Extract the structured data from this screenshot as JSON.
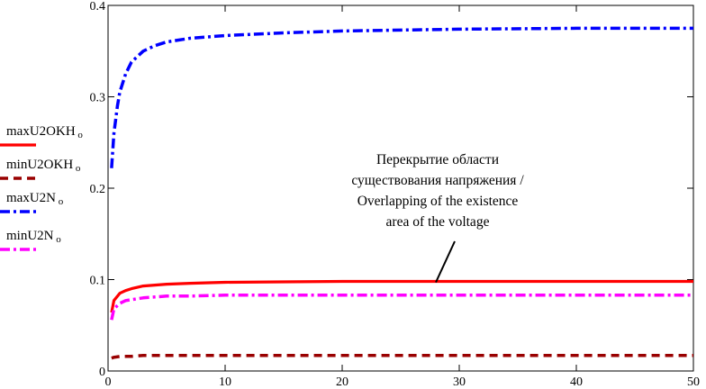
{
  "chart_data": {
    "type": "line",
    "xlim": [
      0,
      50
    ],
    "ylim": [
      0,
      0.4
    ],
    "x_ticks": [
      0,
      10,
      20,
      30,
      40,
      50
    ],
    "y_ticks": [
      0,
      0.1,
      0.2,
      0.3,
      0.4
    ],
    "x_tick_labels": [
      "0",
      "10",
      "20",
      "30",
      "40",
      "50"
    ],
    "y_tick_labels": [
      "0",
      "0.1",
      "0.2",
      "0.3",
      "0.4"
    ],
    "grid": false,
    "legend_position": "left",
    "series": [
      {
        "name": "maxU2OKH",
        "subscript": "o",
        "color": "#ff0000",
        "style": "solid",
        "x": [
          0.3,
          0.5,
          1,
          1.5,
          2,
          3,
          4,
          5,
          7,
          10,
          15,
          20,
          30,
          40,
          50
        ],
        "y": [
          0.064,
          0.077,
          0.085,
          0.088,
          0.09,
          0.093,
          0.094,
          0.095,
          0.096,
          0.097,
          0.0975,
          0.098,
          0.098,
          0.098,
          0.098
        ]
      },
      {
        "name": "minU2OKH",
        "subscript": "o",
        "color": "#990000",
        "style": "dash",
        "x": [
          0.3,
          0.5,
          1,
          2,
          3,
          5,
          10,
          20,
          30,
          40,
          50
        ],
        "y": [
          0.014,
          0.015,
          0.016,
          0.016,
          0.017,
          0.017,
          0.017,
          0.017,
          0.017,
          0.017,
          0.017
        ]
      },
      {
        "name": "maxU2N",
        "subscript": "o",
        "color": "#0000ff",
        "style": "dashdot",
        "x": [
          0.3,
          0.5,
          0.8,
          1,
          1.5,
          2,
          3,
          4,
          5,
          7,
          10,
          15,
          20,
          30,
          40,
          50
        ],
        "y": [
          0.222,
          0.26,
          0.29,
          0.305,
          0.325,
          0.338,
          0.35,
          0.356,
          0.36,
          0.364,
          0.367,
          0.37,
          0.372,
          0.374,
          0.375,
          0.375
        ]
      },
      {
        "name": "minU2N",
        "subscript": "o",
        "color": "#ff00ff",
        "style": "dashdot",
        "x": [
          0.3,
          0.5,
          1,
          1.5,
          2,
          3,
          4,
          5,
          7,
          10,
          15,
          20,
          30,
          40,
          50
        ],
        "y": [
          0.056,
          0.068,
          0.074,
          0.077,
          0.078,
          0.08,
          0.081,
          0.082,
          0.082,
          0.083,
          0.083,
          0.083,
          0.083,
          0.083,
          0.083
        ]
      }
    ],
    "annotation": {
      "lines": [
        "Перекрытие области",
        "существования напряжения /",
        "Overlapping of the existence",
        "area of the voltage"
      ],
      "points_to": {
        "x": 28,
        "y": 0.097
      }
    }
  }
}
